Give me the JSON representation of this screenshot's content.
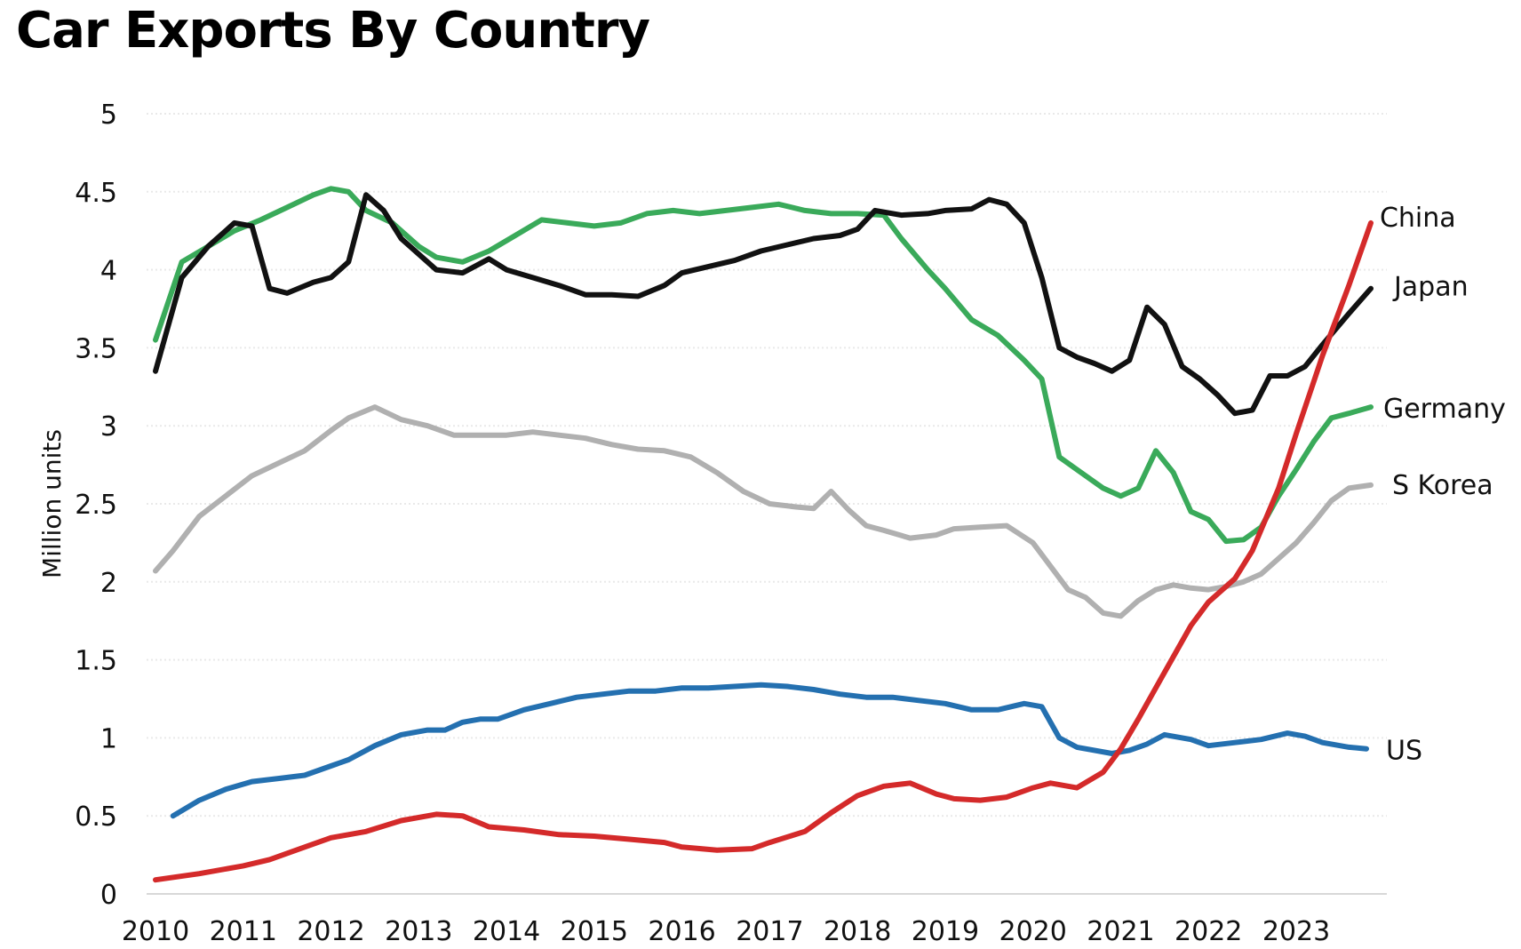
{
  "title": "Car Exports By Country",
  "chart_data": {
    "type": "line",
    "title": "Car Exports By Country",
    "ylabel": "Million units",
    "xlabel": "",
    "xlim": [
      2010,
      2023.9
    ],
    "ylim": [
      0,
      5
    ],
    "x_ticks": [
      "2010",
      "2011",
      "2012",
      "2013",
      "2014",
      "2015",
      "2016",
      "2017",
      "2018",
      "2019",
      "2020",
      "2021",
      "2022",
      "2023"
    ],
    "y_ticks": [
      "0",
      "0.5",
      "1",
      "1.5",
      "2",
      "2.5",
      "3",
      "3.5",
      "4",
      "4.5",
      "5"
    ],
    "grid": true,
    "legend": "labels at line ends (right)",
    "series": [
      {
        "name": "China",
        "color": "#d42a2a",
        "x": [
          2010.0,
          2010.5,
          2011.0,
          2011.3,
          2011.7,
          2012.0,
          2012.4,
          2012.8,
          2013.2,
          2013.5,
          2013.8,
          2014.2,
          2014.6,
          2015.0,
          2015.4,
          2015.8,
          2016.0,
          2016.4,
          2016.8,
          2017.0,
          2017.4,
          2017.7,
          2018.0,
          2018.3,
          2018.6,
          2018.9,
          2019.1,
          2019.4,
          2019.7,
          2020.0,
          2020.2,
          2020.5,
          2020.8,
          2021.0,
          2021.2,
          2021.5,
          2021.8,
          2022.0,
          2022.3,
          2022.5,
          2022.8,
          2023.0,
          2023.3,
          2023.6,
          2023.85
        ],
        "y": [
          0.09,
          0.13,
          0.18,
          0.22,
          0.3,
          0.36,
          0.4,
          0.47,
          0.51,
          0.5,
          0.43,
          0.41,
          0.38,
          0.37,
          0.35,
          0.33,
          0.3,
          0.28,
          0.29,
          0.33,
          0.4,
          0.52,
          0.63,
          0.69,
          0.71,
          0.64,
          0.61,
          0.6,
          0.62,
          0.68,
          0.71,
          0.68,
          0.78,
          0.93,
          1.12,
          1.42,
          1.72,
          1.87,
          2.02,
          2.2,
          2.6,
          2.95,
          3.45,
          3.9,
          4.3
        ]
      },
      {
        "name": "Japan",
        "color": "#111111",
        "x": [
          2010.0,
          2010.3,
          2010.6,
          2010.9,
          2011.1,
          2011.3,
          2011.5,
          2011.8,
          2012.0,
          2012.2,
          2012.4,
          2012.6,
          2012.8,
          2013.0,
          2013.2,
          2013.5,
          2013.8,
          2014.0,
          2014.3,
          2014.6,
          2014.9,
          2015.2,
          2015.5,
          2015.8,
          2016.0,
          2016.3,
          2016.6,
          2016.9,
          2017.2,
          2017.5,
          2017.8,
          2018.0,
          2018.2,
          2018.5,
          2018.8,
          2019.0,
          2019.3,
          2019.5,
          2019.7,
          2019.9,
          2020.1,
          2020.3,
          2020.5,
          2020.7,
          2020.9,
          2021.1,
          2021.3,
          2021.5,
          2021.7,
          2021.9,
          2022.1,
          2022.3,
          2022.5,
          2022.7,
          2022.9,
          2023.1,
          2023.3,
          2023.6,
          2023.85
        ],
        "y": [
          3.35,
          3.95,
          4.15,
          4.3,
          4.28,
          3.88,
          3.85,
          3.92,
          3.95,
          4.05,
          4.48,
          4.38,
          4.2,
          4.1,
          4.0,
          3.98,
          4.07,
          4.0,
          3.95,
          3.9,
          3.84,
          3.84,
          3.83,
          3.9,
          3.98,
          4.02,
          4.06,
          4.12,
          4.16,
          4.2,
          4.22,
          4.26,
          4.38,
          4.35,
          4.36,
          4.38,
          4.39,
          4.45,
          4.42,
          4.3,
          3.95,
          3.5,
          3.44,
          3.4,
          3.35,
          3.42,
          3.76,
          3.65,
          3.38,
          3.3,
          3.2,
          3.08,
          3.1,
          3.32,
          3.32,
          3.38,
          3.52,
          3.72,
          3.88
        ]
      },
      {
        "name": "Germany",
        "color": "#3aaa5a",
        "x": [
          2010.0,
          2010.3,
          2010.6,
          2010.9,
          2011.2,
          2011.5,
          2011.8,
          2012.0,
          2012.2,
          2012.4,
          2012.7,
          2013.0,
          2013.2,
          2013.5,
          2013.8,
          2014.1,
          2014.4,
          2014.7,
          2015.0,
          2015.3,
          2015.6,
          2015.9,
          2016.2,
          2016.5,
          2016.8,
          2017.1,
          2017.4,
          2017.7,
          2018.0,
          2018.3,
          2018.5,
          2018.8,
          2019.0,
          2019.3,
          2019.6,
          2019.9,
          2020.1,
          2020.3,
          2020.5,
          2020.8,
          2021.0,
          2021.2,
          2021.4,
          2021.6,
          2021.8,
          2022.0,
          2022.2,
          2022.4,
          2022.6,
          2022.8,
          2023.0,
          2023.2,
          2023.4,
          2023.6,
          2023.85
        ],
        "y": [
          3.55,
          4.05,
          4.15,
          4.25,
          4.32,
          4.4,
          4.48,
          4.52,
          4.5,
          4.38,
          4.3,
          4.15,
          4.08,
          4.05,
          4.12,
          4.22,
          4.32,
          4.3,
          4.28,
          4.3,
          4.36,
          4.38,
          4.36,
          4.38,
          4.4,
          4.42,
          4.38,
          4.36,
          4.36,
          4.35,
          4.2,
          4.0,
          3.88,
          3.68,
          3.58,
          3.42,
          3.3,
          2.8,
          2.72,
          2.6,
          2.55,
          2.6,
          2.84,
          2.7,
          2.45,
          2.4,
          2.26,
          2.27,
          2.35,
          2.55,
          2.72,
          2.9,
          3.05,
          3.08,
          3.12
        ]
      },
      {
        "name": "S Korea",
        "color": "#b0b0b0",
        "x": [
          2010.0,
          2010.2,
          2010.5,
          2010.8,
          2011.1,
          2011.4,
          2011.7,
          2012.0,
          2012.2,
          2012.5,
          2012.8,
          2013.1,
          2013.4,
          2013.7,
          2014.0,
          2014.3,
          2014.6,
          2014.9,
          2015.2,
          2015.5,
          2015.8,
          2016.1,
          2016.4,
          2016.7,
          2017.0,
          2017.3,
          2017.5,
          2017.7,
          2017.9,
          2018.1,
          2018.3,
          2018.6,
          2018.9,
          2019.1,
          2019.4,
          2019.7,
          2020.0,
          2020.2,
          2020.4,
          2020.6,
          2020.8,
          2021.0,
          2021.2,
          2021.4,
          2021.6,
          2021.8,
          2022.0,
          2022.2,
          2022.4,
          2022.6,
          2022.8,
          2023.0,
          2023.2,
          2023.4,
          2023.6,
          2023.85
        ],
        "y": [
          2.07,
          2.2,
          2.42,
          2.55,
          2.68,
          2.76,
          2.84,
          2.97,
          3.05,
          3.12,
          3.04,
          3.0,
          2.94,
          2.94,
          2.94,
          2.96,
          2.94,
          2.92,
          2.88,
          2.85,
          2.84,
          2.8,
          2.7,
          2.58,
          2.5,
          2.48,
          2.47,
          2.58,
          2.46,
          2.36,
          2.33,
          2.28,
          2.3,
          2.34,
          2.35,
          2.36,
          2.25,
          2.1,
          1.95,
          1.9,
          1.8,
          1.78,
          1.88,
          1.95,
          1.98,
          1.96,
          1.95,
          1.97,
          2.0,
          2.05,
          2.15,
          2.25,
          2.38,
          2.52,
          2.6,
          2.62
        ]
      },
      {
        "name": "US",
        "color": "#2470b0",
        "x": [
          2010.2,
          2010.5,
          2010.8,
          2011.1,
          2011.4,
          2011.7,
          2012.0,
          2012.2,
          2012.5,
          2012.8,
          2013.1,
          2013.3,
          2013.5,
          2013.7,
          2013.9,
          2014.2,
          2014.5,
          2014.8,
          2015.1,
          2015.4,
          2015.7,
          2016.0,
          2016.3,
          2016.6,
          2016.9,
          2017.2,
          2017.5,
          2017.8,
          2018.1,
          2018.4,
          2018.7,
          2019.0,
          2019.3,
          2019.6,
          2019.9,
          2020.1,
          2020.3,
          2020.5,
          2020.7,
          2020.9,
          2021.1,
          2021.3,
          2021.5,
          2021.8,
          2022.0,
          2022.3,
          2022.6,
          2022.9,
          2023.1,
          2023.3,
          2023.6,
          2023.8
        ],
        "y": [
          0.5,
          0.6,
          0.67,
          0.72,
          0.74,
          0.76,
          0.82,
          0.86,
          0.95,
          1.02,
          1.05,
          1.05,
          1.1,
          1.12,
          1.12,
          1.18,
          1.22,
          1.26,
          1.28,
          1.3,
          1.3,
          1.32,
          1.32,
          1.33,
          1.34,
          1.33,
          1.31,
          1.28,
          1.26,
          1.26,
          1.24,
          1.22,
          1.18,
          1.18,
          1.22,
          1.2,
          1.0,
          0.94,
          0.92,
          0.9,
          0.92,
          0.96,
          1.02,
          0.99,
          0.95,
          0.97,
          0.99,
          1.03,
          1.01,
          0.97,
          0.94,
          0.93
        ]
      }
    ]
  }
}
